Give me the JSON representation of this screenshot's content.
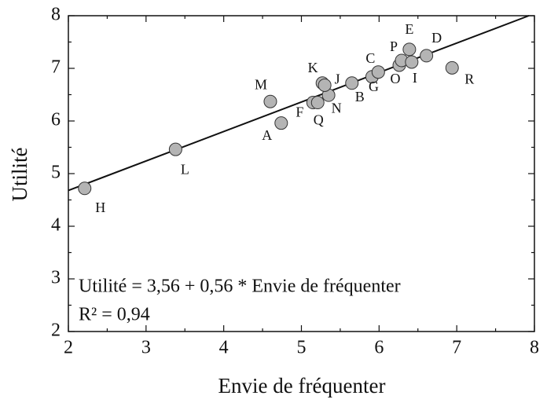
{
  "chart_data": {
    "type": "scatter",
    "x_label": "Envie de fréquenter",
    "y_label": "Utilité",
    "labels": [
      "H",
      "L",
      "M",
      "A",
      "F",
      "Q",
      "N",
      "K",
      "J",
      "B",
      "G",
      "C",
      "O",
      "P",
      "I",
      "E",
      "D",
      "R"
    ],
    "x": [
      2.21,
      3.38,
      4.6,
      4.74,
      5.15,
      5.21,
      5.35,
      5.27,
      5.3,
      5.65,
      5.91,
      5.99,
      6.26,
      6.29,
      6.42,
      6.39,
      6.61,
      6.94
    ],
    "values": [
      4.72,
      5.46,
      6.37,
      5.96,
      6.35,
      6.35,
      6.49,
      6.72,
      6.68,
      6.72,
      6.84,
      6.93,
      7.06,
      7.15,
      7.12,
      7.36,
      7.24,
      7.01
    ],
    "color": "#b4b4b4",
    "fit": {
      "intercept": 3.56,
      "slope": 0.56
    },
    "annotations": [
      "Utilité = 3,56 + 0,56 * Envie de fréquenter",
      "R² = 0,94"
    ],
    "xlim": [
      2,
      8
    ],
    "ylim": [
      2,
      8
    ],
    "xticks": [
      2,
      3,
      4,
      5,
      6,
      7,
      8
    ],
    "yticks": [
      2,
      3,
      4,
      5,
      6,
      7,
      8
    ]
  }
}
